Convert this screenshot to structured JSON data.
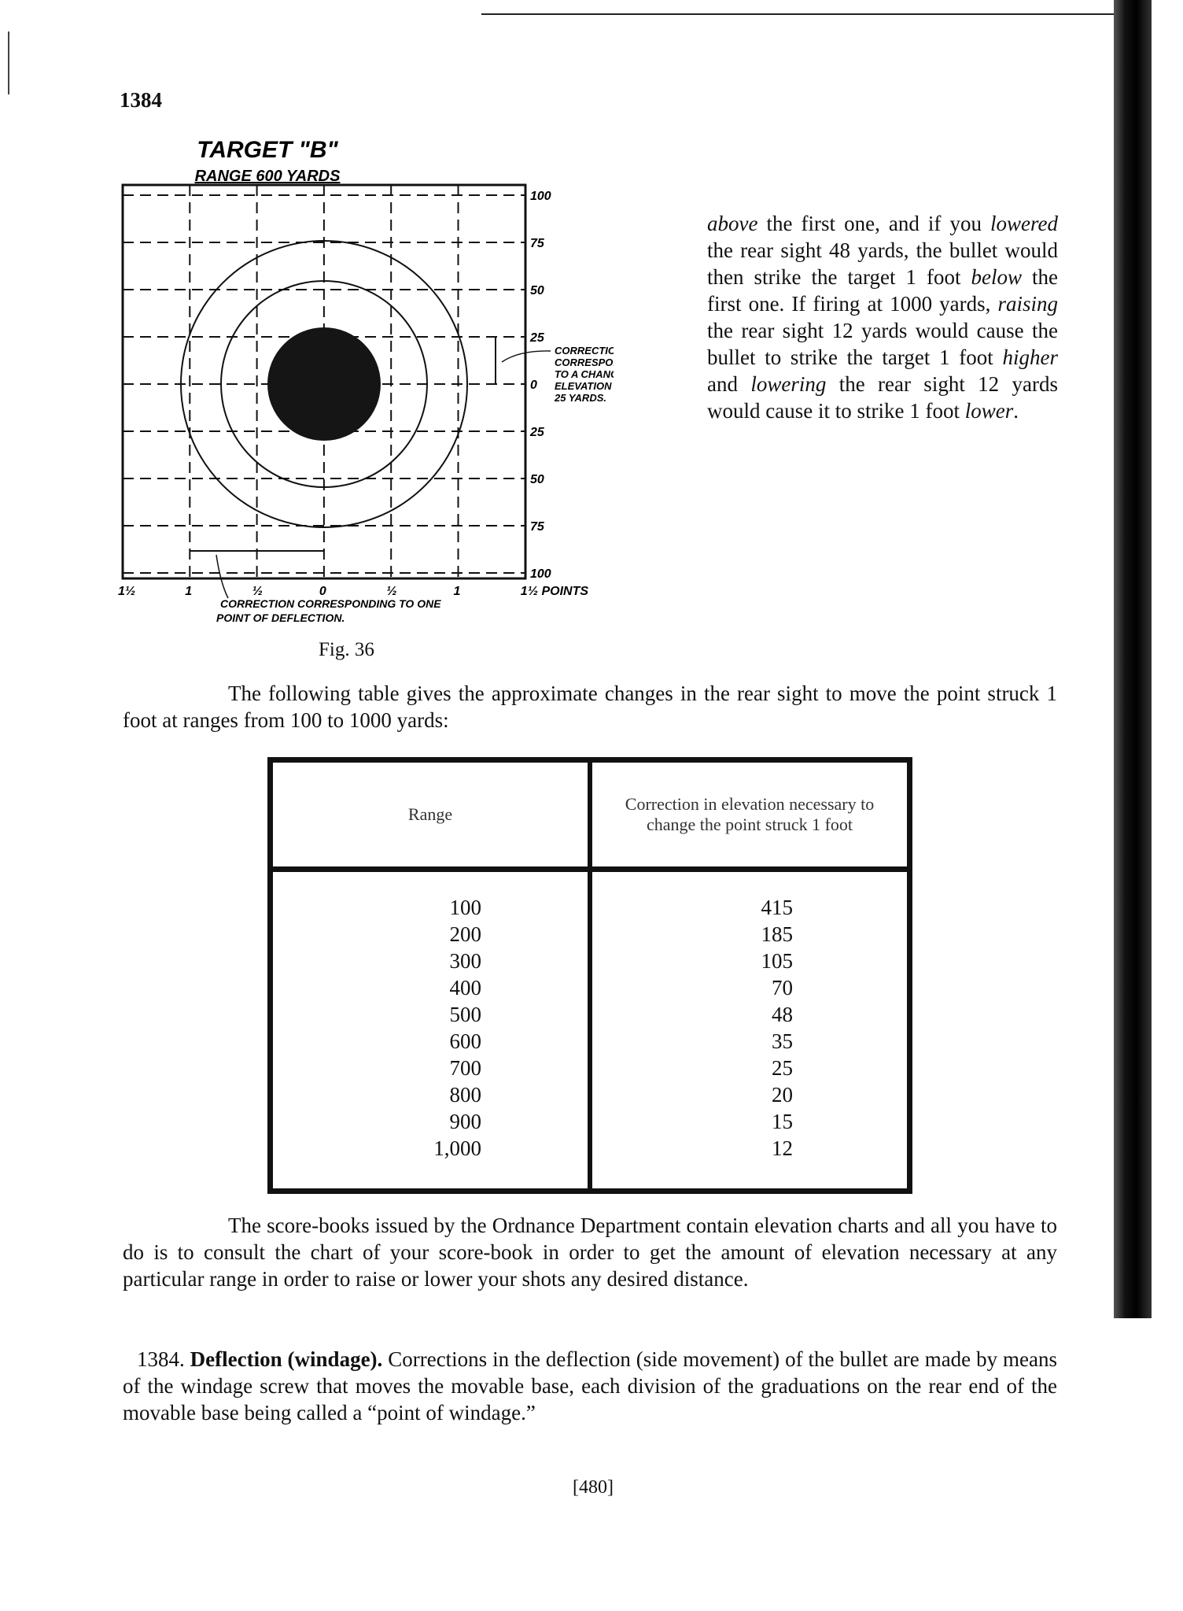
{
  "page_number": "1384",
  "figure": {
    "title": "TARGET \"B\"",
    "subtitle": "RANGE 600 YARDS",
    "right_labels": [
      "100",
      "75",
      "50",
      "25",
      "0",
      "25",
      "50",
      "75",
      "100"
    ],
    "bottom_labels": [
      "1½",
      "1",
      "½",
      "0",
      "½",
      "1",
      "1½ POINTS"
    ],
    "elevation_note": [
      "CORRECTION",
      "CORRESPONDING",
      "TO A CHANGE OF",
      "ELEVATION OF",
      "25 YARDS."
    ],
    "deflection_note": [
      "CORRECTION CORRESPONDING TO ONE",
      "POINT OF DEFLECTION."
    ],
    "caption": "Fig. 36"
  },
  "right_column": {
    "parts": [
      "above",
      " the first one, and if you ",
      "lowered",
      " the rear sight 48 yards, the bullet would then strike the target 1 foot ",
      "below",
      " the first one. If firing at 1000 yards, ",
      "raising",
      " the rear sight 12 yards would cause the bullet to strike the target 1 foot ",
      "higher",
      " and ",
      "lowering",
      " the rear sight 12 yards would cause it to strike 1 foot ",
      "lower",
      "."
    ]
  },
  "intro": "The following table gives the approximate changes in the rear sight to move the point struck 1 foot at ranges from 100 to 1000 yards:",
  "table": {
    "headers": [
      "Range",
      "Correction in elevation necessary to change the point struck 1 foot"
    ],
    "rows": [
      [
        "100",
        "415"
      ],
      [
        "200",
        "185"
      ],
      [
        "300",
        "105"
      ],
      [
        "400",
        "70"
      ],
      [
        "500",
        "48"
      ],
      [
        "600",
        "35"
      ],
      [
        "700",
        "25"
      ],
      [
        "800",
        "20"
      ],
      [
        "900",
        "15"
      ],
      [
        "1,000",
        "12"
      ]
    ]
  },
  "paragraph1": "The score-books issued by the Ordnance Department contain elevation charts and all you have to do is to consult the chart of your score-book in order to get the amount of elevation necessary at any particular range in order to raise or lower your shots any desired distance.",
  "paragraph2": {
    "number": "1384.",
    "heading": "Deflection (windage).",
    "text": " Corrections in the deflection (side movement) of the bullet are made by means of the windage screw that moves the movable base, each division of the graduations on the rear end of the movable base being called a “point of windage.”"
  },
  "folio": "[480]"
}
